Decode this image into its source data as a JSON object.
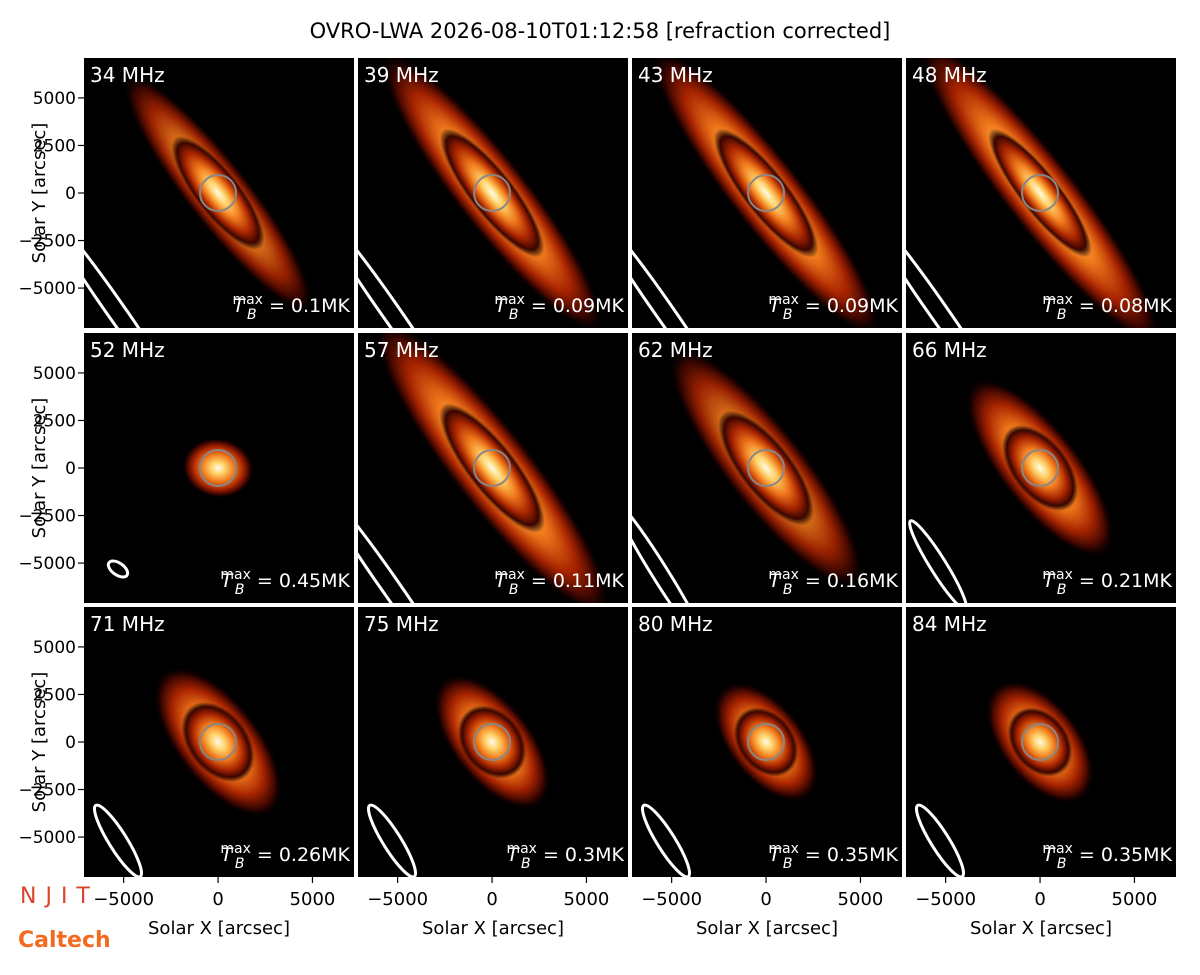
{
  "chart_data": {
    "type": "image-grid",
    "title": "OVRO-LWA 2026-08-10T01:12:58 [refraction corrected]",
    "xlabel": "Solar X [arcsec]",
    "ylabel": "Solar Y [arcsec]",
    "xlim": [
      -7100,
      7200
    ],
    "ylim": [
      -7100,
      7100
    ],
    "xticks": [
      {
        "value": -5000,
        "label": "−5000"
      },
      0,
      5000
    ],
    "yticks": [
      {
        "value": -5000,
        "label": "−5000"
      },
      {
        "value": -2500,
        "label": "−2500"
      },
      0,
      2500,
      5000
    ],
    "annotation_symbol": "T",
    "annotation_subscript": "B",
    "annotation_superscript": "max",
    "panels": [
      {
        "label": "34 MHz",
        "annotation": "= 0.1MK"
      },
      {
        "label": "39 MHz",
        "annotation": "= 0.09MK"
      },
      {
        "label": "43 MHz",
        "annotation": "= 0.09MK"
      },
      {
        "label": "48 MHz",
        "annotation": "= 0.08MK"
      },
      {
        "label": "52 MHz",
        "annotation": "= 0.45MK"
      },
      {
        "label": "57 MHz",
        "annotation": "= 0.11MK"
      },
      {
        "label": "62 MHz",
        "annotation": "= 0.16MK"
      },
      {
        "label": "66 MHz",
        "annotation": "= 0.21MK"
      },
      {
        "label": "71 MHz",
        "annotation": "= 0.26MK"
      },
      {
        "label": "75 MHz",
        "annotation": "= 0.3MK"
      },
      {
        "label": "80 MHz",
        "annotation": "= 0.35MK"
      },
      {
        "label": "84 MHz",
        "annotation": "= 0.35MK"
      }
    ]
  },
  "logos": [
    "NJIT",
    "Caltech"
  ]
}
